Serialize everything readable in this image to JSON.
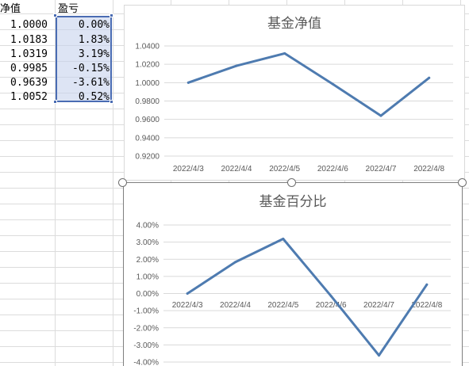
{
  "sheet": {
    "headers": {
      "nav": "净值",
      "pnl": "盈亏"
    },
    "nav_values": [
      "1.0000",
      "1.0183",
      "1.0319",
      "0.9985",
      "0.9639",
      "1.0052"
    ],
    "pnl_values": [
      "0.00%",
      "1.83%",
      "3.19%",
      "-0.15%",
      "-3.61%",
      "0.52%"
    ]
  },
  "colors": {
    "line": "#4e7bb0",
    "grid": "#d9d9d9",
    "selection_border": "#4a6cb3"
  },
  "chart_data": [
    {
      "type": "line",
      "title": "基金净值",
      "categories": [
        "2022/4/3",
        "2022/4/4",
        "2022/4/5",
        "2022/4/6",
        "2022/4/7",
        "2022/4/8"
      ],
      "values": [
        1.0,
        1.0183,
        1.0319,
        0.9985,
        0.9639,
        1.0052
      ],
      "yticks": [
        "0.9200",
        "0.9400",
        "0.9600",
        "0.9800",
        "1.0000",
        "1.0200",
        "1.0400"
      ],
      "ylim": [
        0.92,
        1.04
      ],
      "grid": true
    },
    {
      "type": "line",
      "title": "基金百分比",
      "categories": [
        "2022/4/3",
        "2022/4/4",
        "2022/4/5",
        "2022/4/6",
        "2022/4/7",
        "2022/4/8"
      ],
      "values": [
        0.0,
        1.83,
        3.19,
        -0.15,
        -3.61,
        0.52
      ],
      "yticks": [
        "-4.00%",
        "-3.00%",
        "-2.00%",
        "-1.00%",
        "0.00%",
        "1.00%",
        "2.00%",
        "3.00%",
        "4.00%"
      ],
      "ylim": [
        -4,
        4
      ],
      "grid": true
    }
  ]
}
